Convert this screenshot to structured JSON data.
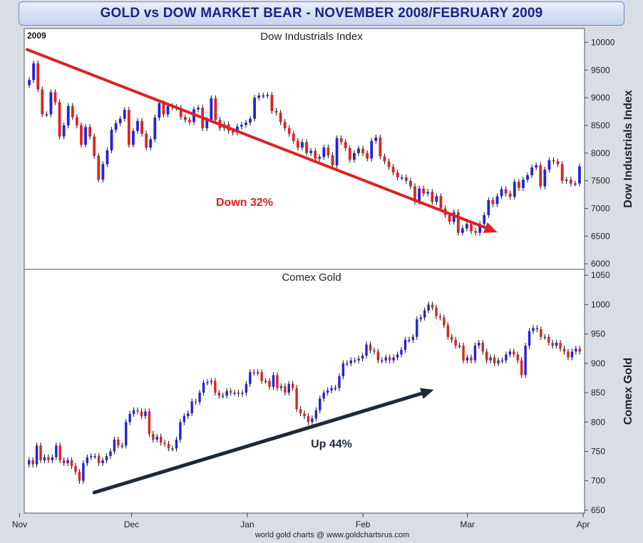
{
  "title": "GOLD vs DOW MARKET BEAR - NOVEMBER 2008/FEBRUARY 2009",
  "credit": "world gold charts @ www.goldchartsrus.com",
  "colors": {
    "up": "#2222dd",
    "down": "#dd2222",
    "arrow_down": "#dd2222",
    "arrow_up": "#1f2a38"
  },
  "chart_data": [
    {
      "type": "candlestick",
      "name": "dow",
      "title": "Dow Industrials Index",
      "year_label": "2009",
      "ylabel": "Dow Industrials Index",
      "ylim": [
        5900,
        10250
      ],
      "yticks": [
        6000,
        6500,
        7000,
        7500,
        8000,
        8500,
        9000,
        9500,
        10000
      ],
      "annotation": {
        "text": "Down 32%",
        "color": "#dd2222",
        "from": [
          "2008-11-03",
          9870
        ],
        "to": [
          "2009-03-09",
          6570
        ]
      },
      "closes": [
        9320,
        9620,
        9150,
        8700,
        8700,
        9100,
        8920,
        8300,
        8500,
        8850,
        8650,
        8500,
        8150,
        8470,
        8300,
        7950,
        7520,
        7800,
        8050,
        8420,
        8540,
        8620,
        8780,
        8150,
        8400,
        8580,
        8350,
        8100,
        8250,
        8640,
        8900,
        8700,
        8850,
        8830,
        8820,
        8650,
        8600,
        8560,
        8790,
        8820,
        8450,
        8600,
        8990,
        8600,
        8450,
        8520,
        8400,
        8370,
        8480,
        8510,
        8550,
        8620,
        9000,
        9040,
        9040,
        9050,
        8760,
        8730,
        8560,
        8450,
        8350,
        8220,
        8100,
        8200,
        8000,
        8040,
        7900,
        7930,
        8100,
        7960,
        7780,
        8270,
        8200,
        8090,
        7880,
        8000,
        8080,
        8000,
        7900,
        8220,
        8280,
        7940,
        7850,
        7750,
        7650,
        7560,
        7560,
        7500,
        7400,
        7120,
        7360,
        7270,
        7300,
        7120,
        7220,
        7000,
        6880,
        6760,
        6930,
        6560,
        6640,
        6720,
        6590,
        6560,
        6720,
        6880,
        7150,
        7080,
        7220,
        7350,
        7270,
        7210,
        7480,
        7370,
        7520,
        7600,
        7740,
        7780,
        7400,
        7700,
        7870,
        7850,
        7800,
        7500,
        7520,
        7450,
        7450,
        7760
      ]
    },
    {
      "type": "candlestick",
      "name": "gold",
      "title": "Comex Gold",
      "ylabel": "Comex Gold",
      "ylim": [
        645,
        1060
      ],
      "yticks": [
        650,
        700,
        750,
        800,
        850,
        900,
        950,
        1000,
        1050
      ],
      "annotation": {
        "text": "Up 44%",
        "color": "#1f2a38",
        "from": [
          "2008-11-21",
          680
        ],
        "to": [
          "2009-02-20",
          855
        ]
      },
      "closes": [
        735,
        728,
        760,
        735,
        740,
        735,
        740,
        760,
        735,
        730,
        735,
        725,
        715,
        700,
        730,
        740,
        742,
        742,
        730,
        735,
        742,
        750,
        770,
        760,
        760,
        800,
        814,
        820,
        818,
        810,
        818,
        780,
        770,
        775,
        765,
        763,
        755,
        755,
        770,
        800,
        810,
        815,
        835,
        834,
        850,
        867,
        868,
        870,
        850,
        845,
        845,
        853,
        850,
        850,
        848,
        850,
        865,
        885,
        884,
        885,
        870,
        870,
        860,
        880,
        858,
        861,
        850,
        865,
        858,
        822,
        815,
        810,
        800,
        806,
        820,
        840,
        850,
        854,
        858,
        858,
        878,
        900,
        900,
        905,
        905,
        908,
        913,
        932,
        922,
        920,
        905,
        905,
        910,
        905,
        910,
        915,
        923,
        940,
        940,
        945,
        975,
        978,
        990,
        1000,
        995,
        980,
        978,
        965,
        945,
        940,
        930,
        930,
        905,
        910,
        905,
        930,
        935,
        920,
        905,
        910,
        900,
        905,
        905,
        915,
        920,
        915,
        905,
        880,
        930,
        955,
        960,
        958,
        945,
        945,
        935,
        930,
        935,
        925,
        920,
        910,
        920,
        925,
        920
      ]
    }
  ],
  "x_axis": {
    "start": "2008-11-03",
    "end": "2009-04-01",
    "ticks": [
      {
        "date": "2008-11-01",
        "label": "Nov"
      },
      {
        "date": "2008-12-01",
        "label": "Dec"
      },
      {
        "date": "2009-01-01",
        "label": "Jan"
      },
      {
        "date": "2009-02-01",
        "label": "Feb"
      },
      {
        "date": "2009-03-01",
        "label": "Mar"
      },
      {
        "date": "2009-04-01",
        "label": "Apr"
      }
    ]
  }
}
